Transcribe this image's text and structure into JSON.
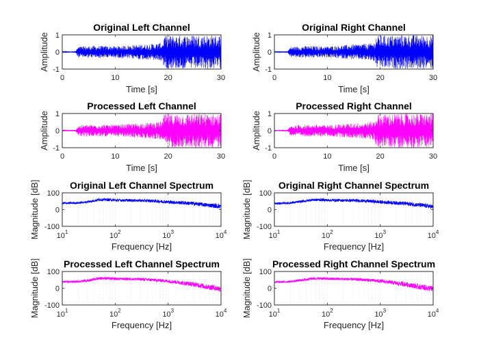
{
  "chart_data": [
    {
      "type": "line",
      "title": "Original Left Channel",
      "xlabel": "Time [s]",
      "ylabel": "Amplitude",
      "xlim": [
        0,
        30
      ],
      "ylim": [
        -1,
        1
      ],
      "xticks": [
        0,
        10,
        20,
        30
      ],
      "yticks": [
        -1,
        0,
        1
      ],
      "color": "#0000ff",
      "grid": false,
      "series": [
        {
          "x": [
            0,
            2.5,
            3,
            6,
            10,
            14,
            18,
            19,
            19.2,
            25,
            30
          ],
          "amplitude": [
            0.02,
            0.05,
            0.32,
            0.36,
            0.34,
            0.42,
            0.5,
            0.58,
            0.95,
            1.0,
            0.98
          ]
        }
      ]
    },
    {
      "type": "line",
      "title": "Original Right Channel",
      "xlabel": "Time [s]",
      "ylabel": "Amplitude",
      "xlim": [
        0,
        30
      ],
      "ylim": [
        -1,
        1
      ],
      "xticks": [
        0,
        10,
        20,
        30
      ],
      "yticks": [
        -1,
        0,
        1
      ],
      "color": "#0000ff",
      "grid": false,
      "series": [
        {
          "x": [
            0,
            2.5,
            3,
            6,
            10,
            14,
            18,
            19,
            19.2,
            25,
            30
          ],
          "amplitude": [
            0.02,
            0.05,
            0.3,
            0.35,
            0.33,
            0.42,
            0.5,
            0.58,
            0.95,
            1.0,
            0.98
          ]
        }
      ]
    },
    {
      "type": "line",
      "title": "Processed Left Channel",
      "xlabel": "Time [s]",
      "ylabel": "Amplitude",
      "xlim": [
        0,
        30
      ],
      "ylim": [
        -1,
        1
      ],
      "xticks": [
        0,
        10,
        20,
        30
      ],
      "yticks": [
        -1,
        0,
        1
      ],
      "color": "#ff00ff",
      "grid": false,
      "series": [
        {
          "x": [
            0,
            2.5,
            3,
            6,
            10,
            14,
            18,
            19,
            19.2,
            25,
            30
          ],
          "amplitude": [
            0.02,
            0.05,
            0.32,
            0.36,
            0.34,
            0.42,
            0.5,
            0.58,
            0.95,
            1.0,
            0.98
          ]
        }
      ]
    },
    {
      "type": "line",
      "title": "Processed Right Channel",
      "xlabel": "Time [s]",
      "ylabel": "Amplitude",
      "xlim": [
        0,
        30
      ],
      "ylim": [
        -1,
        1
      ],
      "xticks": [
        0,
        10,
        20,
        30
      ],
      "yticks": [
        -1,
        0,
        1
      ],
      "color": "#ff00ff",
      "grid": false,
      "series": [
        {
          "x": [
            0,
            2.5,
            3,
            6,
            10,
            14,
            18,
            19,
            19.2,
            25,
            30
          ],
          "amplitude": [
            0.02,
            0.05,
            0.3,
            0.35,
            0.33,
            0.42,
            0.5,
            0.58,
            0.95,
            1.0,
            0.98
          ]
        }
      ]
    },
    {
      "type": "line",
      "title": "Original Left Channel Spectrum",
      "xlabel": "Frequency [Hz]",
      "ylabel": "Magnitude [dB]",
      "xscale": "log",
      "xlim": [
        10,
        10000
      ],
      "ylim": [
        -100,
        100
      ],
      "xticks": [
        1,
        2,
        3,
        4
      ],
      "yticks": [
        -100,
        0,
        100
      ],
      "color": "#0000ff",
      "grid": true,
      "series": [
        {
          "x": [
            10,
            20,
            30,
            50,
            80,
            100,
            200,
            500,
            1000,
            2000,
            5000,
            10000
          ],
          "y": [
            38,
            40,
            46,
            60,
            58,
            56,
            55,
            52,
            45,
            40,
            28,
            18
          ],
          "spread": [
            6,
            6,
            7,
            8,
            8,
            8,
            8,
            9,
            10,
            11,
            12,
            14
          ]
        }
      ]
    },
    {
      "type": "line",
      "title": "Original Right Channel Spectrum",
      "xlabel": "Frequency [Hz]",
      "ylabel": "Magnitude [dB]",
      "xscale": "log",
      "xlim": [
        10,
        10000
      ],
      "ylim": [
        -100,
        100
      ],
      "xticks": [
        1,
        2,
        3,
        4
      ],
      "yticks": [
        -100,
        0,
        100
      ],
      "color": "#0000ff",
      "grid": true,
      "series": [
        {
          "x": [
            10,
            20,
            30,
            50,
            80,
            100,
            200,
            500,
            1000,
            2000,
            5000,
            10000
          ],
          "y": [
            36,
            40,
            47,
            58,
            58,
            56,
            55,
            52,
            45,
            40,
            28,
            16
          ],
          "spread": [
            6,
            6,
            7,
            8,
            8,
            8,
            8,
            9,
            10,
            11,
            12,
            14
          ]
        }
      ]
    },
    {
      "type": "line",
      "title": "Processed Left Channel Spectrum",
      "xlabel": "Frequency [Hz]",
      "ylabel": "Magnitude [dB]",
      "xscale": "log",
      "xlim": [
        10,
        10000
      ],
      "ylim": [
        -100,
        100
      ],
      "xticks": [
        1,
        2,
        3,
        4
      ],
      "yticks": [
        -100,
        0,
        100
      ],
      "color": "#ff00ff",
      "grid": true,
      "series": [
        {
          "x": [
            10,
            20,
            30,
            50,
            80,
            100,
            200,
            500,
            1000,
            2000,
            5000,
            10000
          ],
          "y": [
            38,
            40,
            46,
            60,
            58,
            56,
            55,
            50,
            42,
            30,
            10,
            -5
          ],
          "spread": [
            6,
            6,
            7,
            8,
            8,
            8,
            8,
            9,
            10,
            13,
            16,
            18
          ]
        }
      ]
    },
    {
      "type": "line",
      "title": "Processed Right Channel Spectrum",
      "xlabel": "Frequency [Hz]",
      "ylabel": "Magnitude [dB]",
      "xscale": "log",
      "xlim": [
        10,
        10000
      ],
      "ylim": [
        -100,
        100
      ],
      "xticks": [
        1,
        2,
        3,
        4
      ],
      "yticks": [
        -100,
        0,
        100
      ],
      "color": "#ff00ff",
      "grid": true,
      "series": [
        {
          "x": [
            10,
            20,
            30,
            50,
            80,
            100,
            200,
            500,
            1000,
            2000,
            5000,
            10000
          ],
          "y": [
            36,
            40,
            47,
            58,
            58,
            56,
            55,
            50,
            42,
            30,
            10,
            -5
          ],
          "spread": [
            6,
            6,
            7,
            8,
            8,
            8,
            8,
            9,
            10,
            13,
            16,
            18
          ]
        }
      ]
    }
  ]
}
